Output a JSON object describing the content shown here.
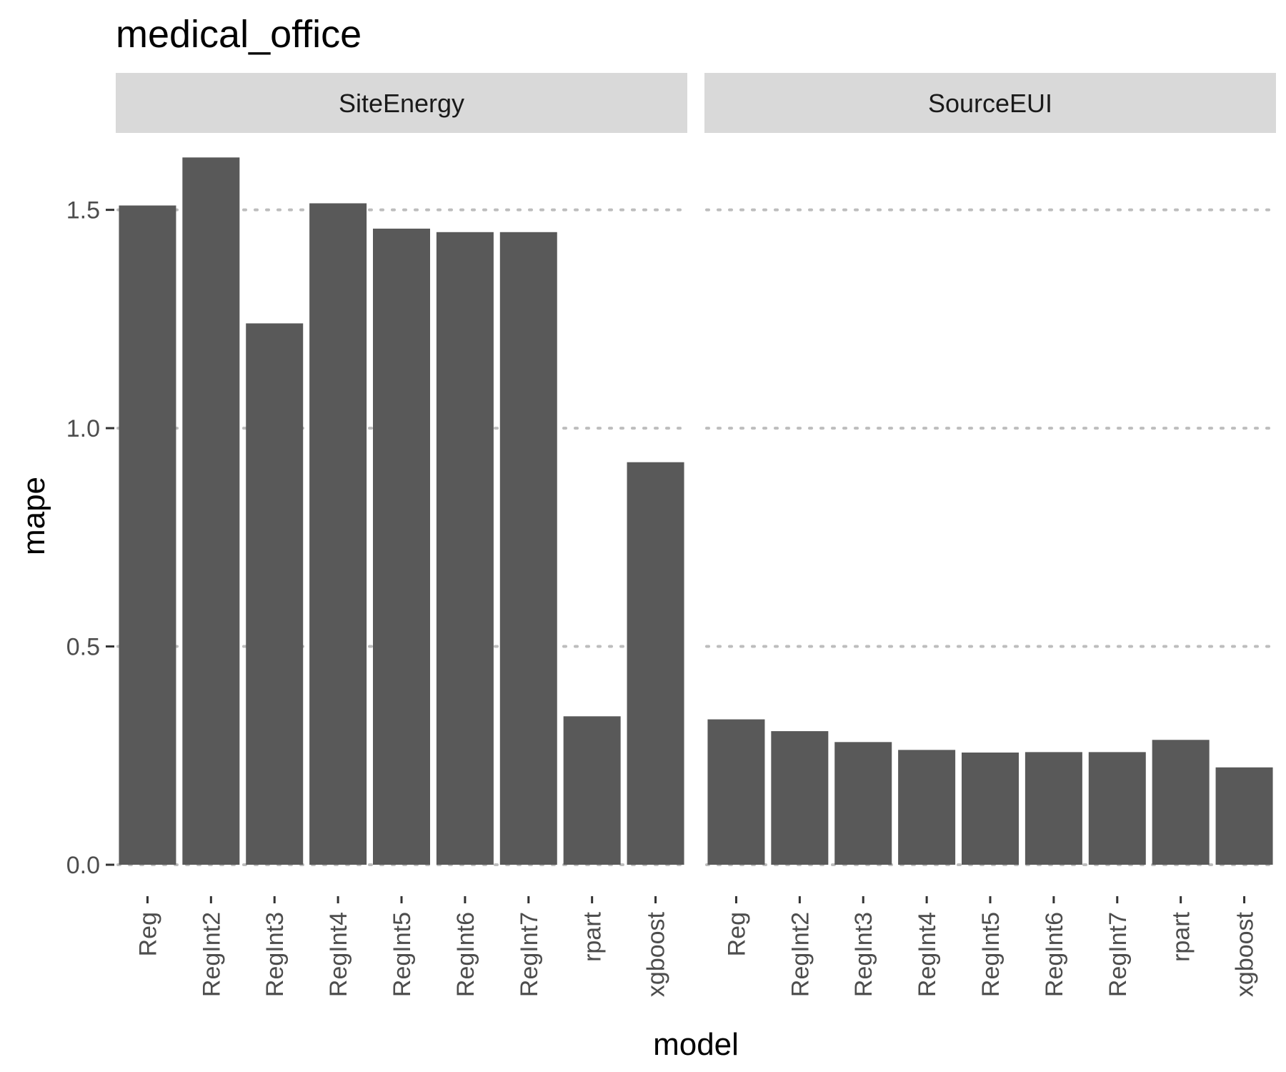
{
  "chart_data": {
    "type": "bar",
    "title": "medical_office",
    "xlabel": "model",
    "ylabel": "mape",
    "ylim": [
      0,
      1.65
    ],
    "yticks": [
      "0.0",
      "0.5",
      "1.0",
      "1.5"
    ],
    "grid": true,
    "colors": {
      "bar": "#595959",
      "strip": "#d9d9d9",
      "grid": "#bdbdbd"
    },
    "categories": [
      "Reg",
      "RegInt2",
      "RegInt3",
      "RegInt4",
      "RegInt5",
      "RegInt6",
      "RegInt7",
      "rpart",
      "xgboost"
    ],
    "panels": [
      {
        "label": "SiteEnergy",
        "values": [
          1.51,
          1.62,
          1.24,
          1.515,
          1.457,
          1.449,
          1.449,
          0.34,
          0.922
        ]
      },
      {
        "label": "SourceEUI",
        "values": [
          0.333,
          0.306,
          0.281,
          0.263,
          0.257,
          0.258,
          0.258,
          0.286,
          0.223
        ]
      }
    ]
  }
}
